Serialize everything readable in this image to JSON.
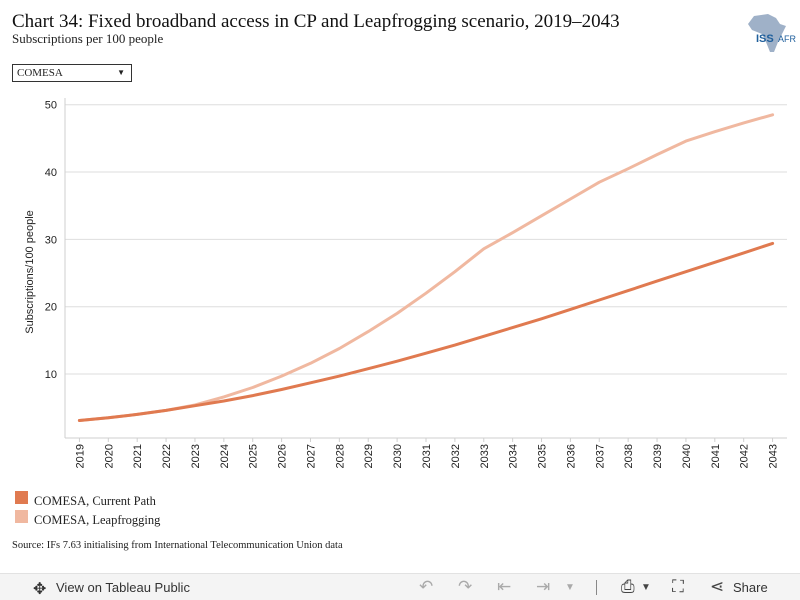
{
  "header": {
    "title": "Chart 34: Fixed broadband access in CP and Leapfrogging scenario, 2019–2043",
    "subtitle": "Subscriptions per 100 people",
    "logo_text": "ISS",
    "logo_text_suffix": "AFR"
  },
  "filter": {
    "selected": "COMESA"
  },
  "chart_data": {
    "type": "line",
    "title": "Chart 34: Fixed broadband access in CP and Leapfrogging scenario, 2019–2043",
    "subtitle": "Subscriptions per 100 people",
    "xlabel": "",
    "ylabel": "Subscriptions/100 people",
    "x": [
      "2019",
      "2020",
      "2021",
      "2022",
      "2023",
      "2024",
      "2025",
      "2026",
      "2027",
      "2028",
      "2029",
      "2030",
      "2031",
      "2032",
      "2033",
      "2034",
      "2035",
      "2036",
      "2037",
      "2038",
      "2039",
      "2040",
      "2041",
      "2042",
      "2043"
    ],
    "ylim": [
      0.5,
      51
    ],
    "yticks": [
      10,
      20,
      30,
      40,
      50
    ],
    "grid": true,
    "legend_position": "bottom-left",
    "series": [
      {
        "name": "COMESA, Current Path",
        "color": "#e07a50",
        "values": [
          3.1,
          3.5,
          4.0,
          4.6,
          5.3,
          6.0,
          6.8,
          7.7,
          8.7,
          9.7,
          10.8,
          11.9,
          13.1,
          14.3,
          15.6,
          16.9,
          18.2,
          19.6,
          21.0,
          22.4,
          23.8,
          25.2,
          26.6,
          28.0,
          29.4
        ]
      },
      {
        "name": "COMESA, Leapfrogging",
        "color": "#f0b8a0",
        "values": [
          3.1,
          3.5,
          4.0,
          4.6,
          5.4,
          6.6,
          8.0,
          9.7,
          11.6,
          13.8,
          16.3,
          19.0,
          22.0,
          25.2,
          28.6,
          31.0,
          33.5,
          36.0,
          38.5,
          40.5,
          42.6,
          44.6,
          46.0,
          47.3,
          48.5
        ]
      }
    ]
  },
  "source": "Source: IFs 7.63 initialising from International Telecommunication Union data",
  "footer": {
    "view_label": "View on Tableau Public",
    "share_label": "Share"
  },
  "icons": {
    "tableau": "tableau-public-icon",
    "undo": "undo-icon",
    "redo": "redo-icon",
    "revert": "revert-icon",
    "refresh": "refresh-icon",
    "download": "download-icon",
    "fullscreen": "fullscreen-icon",
    "share": "share-icon"
  }
}
